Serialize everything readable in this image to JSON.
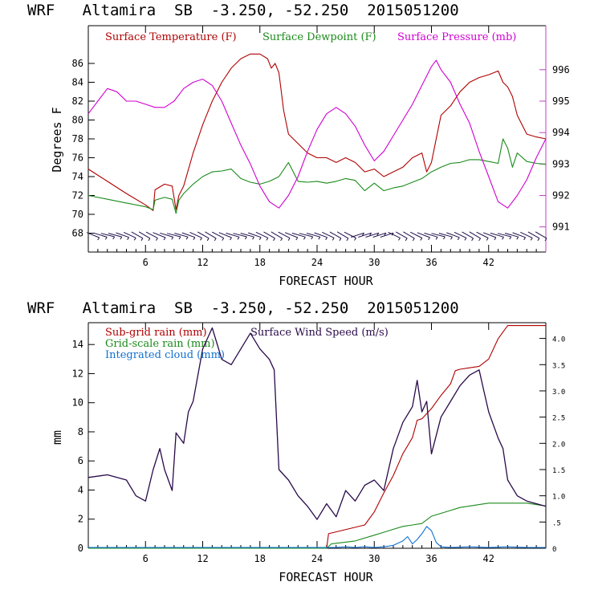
{
  "chart_data": [
    {
      "type": "line",
      "title": "WRF   Altamira  SB  -3.250, -52.250  2015051200",
      "xlabel": "FORECAST HOUR",
      "ylabel": "Degrees F",
      "xlim": [
        0,
        48
      ],
      "ylim": [
        66,
        90
      ],
      "y2lim": [
        990.2,
        997.4
      ],
      "x_ticks": [
        "6",
        "12",
        "18",
        "24",
        "30",
        "36",
        "42"
      ],
      "y_ticks": [
        "68",
        "70",
        "72",
        "74",
        "76",
        "78",
        "80",
        "82",
        "84",
        "86"
      ],
      "y2_ticks": [
        "991",
        "992",
        "993",
        "994",
        "995",
        "996"
      ],
      "colors": {
        "temperature": "#b00000",
        "dewpoint": "#1a8a1a",
        "pressure": "#d000d0",
        "wind": "#20104a",
        "axis2": "#c040c0"
      },
      "legend": [
        "Surface Temperature (F)",
        "Surface Dewpoint (F)",
        "Surface Pressure (mb)"
      ],
      "series": [
        {
          "name": "Surface Temperature (F)",
          "axis": "left",
          "x": [
            0,
            2,
            4,
            6,
            6.8,
            7,
            8,
            8.8,
            9.2,
            9.5,
            10,
            11,
            12,
            13,
            14,
            15,
            16,
            17,
            18,
            18.8,
            19.2,
            19.6,
            20,
            20.5,
            21,
            22,
            23,
            24,
            25,
            26,
            27,
            28,
            29,
            30,
            31,
            32,
            33,
            34,
            35,
            35.5,
            36,
            36.5,
            37,
            38,
            39,
            40,
            41,
            42,
            43,
            43.5,
            44,
            44.5,
            45,
            46,
            47,
            48
          ],
          "y": [
            74.8,
            73.5,
            72.2,
            71.0,
            70.4,
            72.6,
            73.2,
            73.0,
            70.5,
            72.0,
            73.0,
            76.5,
            79.5,
            82.0,
            84.0,
            85.5,
            86.5,
            87.0,
            87.0,
            86.5,
            85.5,
            86.0,
            85.0,
            81.0,
            78.5,
            77.5,
            76.5,
            76.0,
            76.0,
            75.5,
            76.0,
            75.5,
            74.5,
            74.8,
            74.0,
            74.5,
            75.0,
            76.0,
            76.5,
            74.5,
            75.5,
            78.0,
            80.5,
            81.5,
            83.0,
            84.0,
            84.5,
            84.8,
            85.2,
            84.0,
            83.5,
            82.5,
            80.5,
            78.5,
            78.2,
            78.0
          ]
        },
        {
          "name": "Surface Dewpoint (F)",
          "axis": "left",
          "x": [
            0,
            2,
            4,
            6,
            6.8,
            7,
            8,
            8.8,
            9.2,
            9.5,
            10,
            11,
            12,
            13,
            14,
            15,
            16,
            17,
            18,
            19,
            20,
            21,
            22,
            23,
            24,
            25,
            26,
            27,
            28,
            29,
            30,
            31,
            32,
            33,
            34,
            35,
            36,
            37,
            38,
            39,
            40,
            41,
            42,
            43,
            43.5,
            44,
            44.5,
            45,
            46,
            47,
            48
          ],
          "y": [
            72.0,
            71.6,
            71.2,
            70.8,
            70.5,
            71.5,
            71.8,
            71.6,
            70.1,
            71.5,
            72.2,
            73.2,
            74.0,
            74.5,
            74.6,
            74.8,
            73.8,
            73.4,
            73.2,
            73.5,
            74.0,
            75.5,
            73.5,
            73.4,
            73.5,
            73.3,
            73.5,
            73.8,
            73.6,
            72.5,
            73.3,
            72.5,
            72.8,
            73.0,
            73.4,
            73.8,
            74.5,
            75.0,
            75.4,
            75.5,
            75.8,
            75.8,
            75.6,
            75.4,
            78.0,
            77.0,
            75.0,
            76.5,
            75.6,
            75.4,
            75.3
          ]
        },
        {
          "name": "Surface Pressure (mb)",
          "axis": "right",
          "x": [
            0,
            1,
            2,
            3,
            4,
            5,
            6,
            7,
            8,
            9,
            10,
            11,
            12,
            13,
            14,
            15,
            16,
            17,
            18,
            19,
            20,
            21,
            22,
            23,
            24,
            25,
            26,
            27,
            28,
            29,
            30,
            31,
            32,
            33,
            34,
            35,
            36,
            36.5,
            37,
            38,
            39,
            40,
            41,
            42,
            43,
            44,
            45,
            46,
            47,
            48
          ],
          "y": [
            994.6,
            995.0,
            995.4,
            995.3,
            995.0,
            995.0,
            994.9,
            994.8,
            994.8,
            995.0,
            995.4,
            995.6,
            995.7,
            995.5,
            995.0,
            994.3,
            993.6,
            993.0,
            992.3,
            991.8,
            991.6,
            992.0,
            992.6,
            993.4,
            994.1,
            994.6,
            994.8,
            994.6,
            994.2,
            993.6,
            993.1,
            993.4,
            993.9,
            994.4,
            994.9,
            995.5,
            996.1,
            996.3,
            996.0,
            995.6,
            994.9,
            994.3,
            993.4,
            992.6,
            991.8,
            991.6,
            992.0,
            992.5,
            993.2,
            993.8
          ]
        }
      ],
      "wind_barbs": {
        "x_range": [
          0.5,
          47.5
        ],
        "y": 67.8,
        "count": 62
      }
    },
    {
      "type": "line",
      "title": "WRF   Altamira  SB  -3.250, -52.250  2015051200",
      "xlabel": "FORECAST HOUR",
      "ylabel": "mm",
      "xlim": [
        0,
        48
      ],
      "ylim": [
        0,
        15.5
      ],
      "y2lim": [
        0,
        4.3
      ],
      "x_ticks": [
        "6",
        "12",
        "18",
        "24",
        "30",
        "36",
        "42"
      ],
      "y_ticks": [
        "0",
        "2",
        "4",
        "6",
        "8",
        "10",
        "12",
        "14"
      ],
      "y2_ticks": [
        "0",
        ".5",
        "1.0",
        "1.5",
        "2.0",
        "2.5",
        "3.0",
        "3.5",
        "4.0"
      ],
      "colors": {
        "subgrid": "#b00000",
        "gridscale": "#1a8a1a",
        "cloud": "#1070d0",
        "wind": "#2a0a4a"
      },
      "legend": [
        "Sub-grid rain (mm)",
        "Surface Wind Speed (m/s)",
        "Grid-scale rain (mm)",
        "Integrated cloud (mm)"
      ],
      "series": [
        {
          "name": "Sub-grid rain (mm)",
          "axis": "left",
          "x": [
            0,
            25,
            25.2,
            29,
            30,
            31,
            32,
            33,
            34,
            34.5,
            35,
            36,
            37,
            38,
            38.5,
            39,
            40,
            41,
            42,
            42.5,
            43,
            44,
            45,
            46,
            47,
            48
          ],
          "y": [
            0,
            0,
            1.0,
            1.6,
            2.5,
            3.8,
            5.0,
            6.5,
            7.6,
            8.8,
            8.9,
            9.6,
            10.5,
            11.3,
            12.2,
            12.3,
            12.4,
            12.5,
            13.0,
            13.7,
            14.4,
            15.3,
            15.3,
            15.3,
            15.3,
            15.3
          ]
        },
        {
          "name": "Grid-scale rain (mm)",
          "axis": "left",
          "x": [
            0,
            25,
            25.5,
            28,
            30,
            31,
            32,
            33,
            34,
            35,
            36,
            37,
            38,
            39,
            40,
            41,
            42,
            43,
            44,
            45,
            46,
            47,
            48
          ],
          "y": [
            0,
            0,
            0.3,
            0.5,
            0.9,
            1.1,
            1.3,
            1.5,
            1.6,
            1.7,
            2.2,
            2.4,
            2.6,
            2.8,
            2.9,
            3.0,
            3.1,
            3.1,
            3.1,
            3.1,
            3.1,
            3.0,
            2.9
          ]
        },
        {
          "name": "Integrated cloud (mm)",
          "axis": "left",
          "x": [
            0,
            26,
            27,
            28,
            29,
            30,
            31,
            32,
            33,
            33.5,
            34,
            34.5,
            35,
            35.5,
            36,
            36.5,
            37,
            38,
            40,
            42,
            44,
            46,
            48
          ],
          "y": [
            0.05,
            0.05,
            0.1,
            0.05,
            0.1,
            0.05,
            0.1,
            0.2,
            0.5,
            0.8,
            0.3,
            0.6,
            1.0,
            1.5,
            1.2,
            0.4,
            0.1,
            0.05,
            0.1,
            0.05,
            0.1,
            0.05,
            0.05
          ]
        },
        {
          "name": "Surface Wind Speed (m/s)",
          "axis": "right",
          "x": [
            0,
            2,
            4,
            5,
            6,
            6.8,
            7.5,
            8,
            8.8,
            9.2,
            10,
            10.5,
            11,
            12,
            13,
            14,
            15,
            16,
            17,
            18,
            19,
            19.5,
            20,
            21,
            22,
            23,
            24,
            25,
            26,
            27,
            28,
            29,
            30,
            31,
            32,
            33,
            34,
            34.5,
            35,
            35.5,
            36,
            37,
            38,
            39,
            40,
            41,
            41.5,
            42,
            43,
            43.5,
            44,
            45,
            46,
            47,
            48
          ],
          "y": [
            1.35,
            1.4,
            1.3,
            1.0,
            0.9,
            1.5,
            1.9,
            1.5,
            1.1,
            2.2,
            2.0,
            2.6,
            2.8,
            3.8,
            4.2,
            3.6,
            3.5,
            3.8,
            4.1,
            3.8,
            3.6,
            3.4,
            1.5,
            1.3,
            1.0,
            0.8,
            0.55,
            0.85,
            0.6,
            1.1,
            0.9,
            1.2,
            1.3,
            1.1,
            1.9,
            2.4,
            2.7,
            3.2,
            2.6,
            2.8,
            1.8,
            2.5,
            2.8,
            3.1,
            3.3,
            3.4,
            3.0,
            2.6,
            2.1,
            1.9,
            1.3,
            1.0,
            0.9,
            0.85,
            0.8
          ]
        }
      ]
    }
  ]
}
